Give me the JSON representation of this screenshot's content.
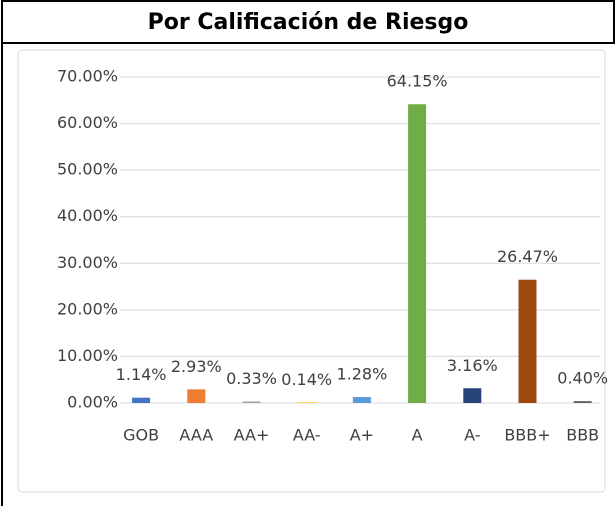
{
  "chart_data": {
    "type": "bar",
    "title": "Por Calificación de Riesgo",
    "categories": [
      "GOB",
      "AAA",
      "AA+",
      "AA-",
      "A+",
      "A",
      "A-",
      "BBB+",
      "BBB"
    ],
    "values": [
      1.14,
      2.93,
      0.33,
      0.14,
      1.28,
      64.15,
      3.16,
      26.47,
      0.4
    ],
    "value_labels": [
      "1.14%",
      "2.93%",
      "0.33%",
      "0.14%",
      "1.28%",
      "64.15%",
      "3.16%",
      "26.47%",
      "0.40%"
    ],
    "colors": [
      "#4472c4",
      "#ed7d31",
      "#a5a5a5",
      "#ffc000",
      "#5b9bd5",
      "#70ad47",
      "#264478",
      "#9e480e",
      "#636363"
    ],
    "ylim": [
      0,
      70
    ],
    "yticks": [
      {
        "value": 0,
        "label": "0.00%"
      },
      {
        "value": 10,
        "label": "10.00%"
      },
      {
        "value": 20,
        "label": "20.00%"
      },
      {
        "value": 30,
        "label": "30.00%"
      },
      {
        "value": 40,
        "label": "40.00%"
      },
      {
        "value": 50,
        "label": "50.00%"
      },
      {
        "value": 60,
        "label": "60.00%"
      },
      {
        "value": 70,
        "label": "70.00%"
      }
    ],
    "grid": true
  }
}
